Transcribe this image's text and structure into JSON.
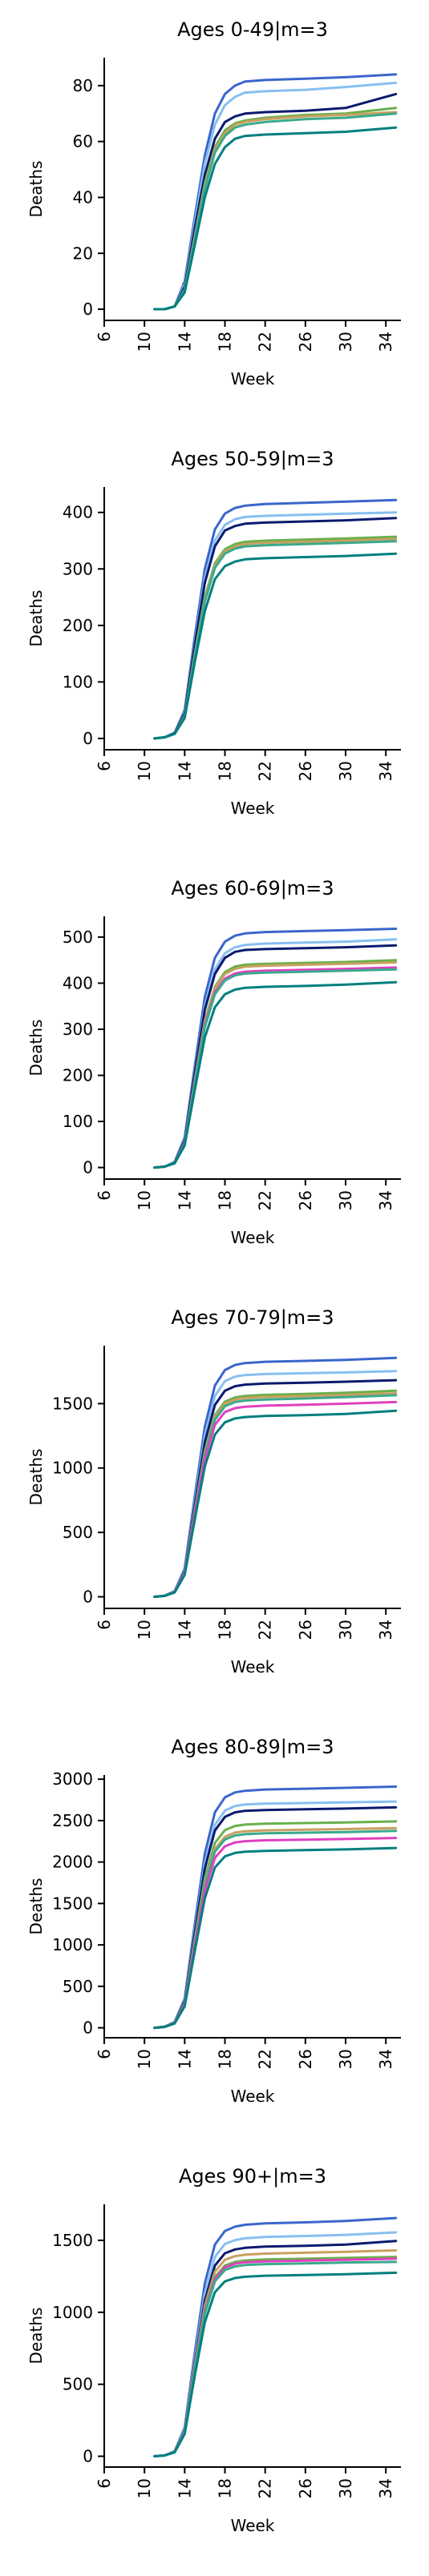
{
  "chart_data": [
    {
      "type": "line",
      "title": "Ages 0-49|m=3",
      "xlabel": "Week",
      "ylabel": "Deaths",
      "xlim": [
        6,
        35.5
      ],
      "ylim": [
        -4,
        90
      ],
      "xticks": [
        6,
        10,
        14,
        18,
        22,
        26,
        30,
        34
      ],
      "yticks": [
        0,
        20,
        40,
        60,
        80
      ],
      "x": [
        11,
        12,
        13,
        14,
        15,
        16,
        17,
        18,
        19,
        20,
        22,
        26,
        30,
        35
      ],
      "series": [
        {
          "color": "#3a66cc",
          "values": [
            0,
            0,
            1,
            10,
            33,
            55,
            70,
            77,
            80,
            81.5,
            82,
            82.5,
            83,
            84
          ]
        },
        {
          "color": "#88bff0",
          "values": [
            0,
            0,
            1,
            9,
            31,
            52,
            66,
            73,
            76,
            77.5,
            78,
            78.5,
            79.5,
            81
          ]
        },
        {
          "color": "#0a1a6e",
          "values": [
            0,
            0,
            1,
            8,
            29,
            48,
            61,
            67,
            69,
            70,
            70.5,
            71,
            72,
            77
          ]
        },
        {
          "color": "#6ab04c",
          "values": [
            0,
            0,
            1,
            7,
            26,
            45,
            58,
            64,
            66.5,
            67.5,
            68.5,
            69.5,
            70,
            72
          ]
        },
        {
          "color": "#c8a060",
          "values": [
            0,
            0,
            1,
            7,
            26,
            44,
            57,
            63,
            66,
            67,
            68,
            69,
            69.5,
            70.5
          ]
        },
        {
          "color": "#3aaa8c",
          "values": [
            0,
            0,
            1,
            7,
            25,
            43,
            56,
            62,
            65,
            66,
            67,
            68,
            68.5,
            70
          ]
        },
        {
          "color": "#007f7f",
          "values": [
            0,
            0,
            1,
            6,
            23,
            40,
            52,
            58,
            61,
            62,
            62.5,
            63,
            63.5,
            65
          ]
        }
      ]
    },
    {
      "type": "line",
      "title": "Ages 50-59|m=3",
      "xlabel": "Week",
      "ylabel": "Deaths",
      "xlim": [
        6,
        35.5
      ],
      "ylim": [
        -20,
        445
      ],
      "xticks": [
        6,
        10,
        14,
        18,
        22,
        26,
        30,
        34
      ],
      "yticks": [
        0,
        100,
        200,
        300,
        400
      ],
      "x": [
        11,
        12,
        13,
        14,
        15,
        16,
        17,
        18,
        19,
        20,
        22,
        26,
        30,
        35
      ],
      "series": [
        {
          "color": "#3a66cc",
          "values": [
            0,
            2,
            10,
            50,
            180,
            300,
            370,
            398,
            408,
            412,
            415,
            417,
            419,
            422
          ]
        },
        {
          "color": "#88bff0",
          "values": [
            0,
            2,
            9,
            46,
            170,
            285,
            350,
            378,
            388,
            392,
            394,
            396,
            398,
            400
          ]
        },
        {
          "color": "#0a1a6e",
          "values": [
            0,
            2,
            9,
            44,
            165,
            275,
            340,
            368,
            376,
            380,
            382,
            384,
            386,
            390
          ]
        },
        {
          "color": "#6ab04c",
          "values": [
            0,
            2,
            8,
            40,
            150,
            250,
            310,
            335,
            344,
            348,
            350,
            352,
            354,
            357
          ]
        },
        {
          "color": "#c8a060",
          "values": [
            0,
            2,
            8,
            39,
            148,
            246,
            306,
            331,
            340,
            344,
            346,
            348,
            350,
            353
          ]
        },
        {
          "color": "#3aaa8c",
          "values": [
            0,
            2,
            8,
            38,
            145,
            242,
            302,
            327,
            336,
            340,
            342,
            344,
            346,
            349
          ]
        },
        {
          "color": "#007f7f",
          "values": [
            0,
            2,
            8,
            36,
            135,
            225,
            282,
            305,
            313,
            317,
            319,
            321,
            323,
            327
          ]
        }
      ]
    },
    {
      "type": "line",
      "title": "Ages 60-69|m=3",
      "xlabel": "Week",
      "ylabel": "Deaths",
      "xlim": [
        6,
        35.5
      ],
      "ylim": [
        -25,
        545
      ],
      "xticks": [
        6,
        10,
        14,
        18,
        22,
        26,
        30,
        34
      ],
      "yticks": [
        0,
        100,
        200,
        300,
        400,
        500
      ],
      "x": [
        11,
        12,
        13,
        14,
        15,
        16,
        17,
        18,
        19,
        20,
        22,
        26,
        30,
        35
      ],
      "series": [
        {
          "color": "#3a66cc",
          "values": [
            0,
            2,
            12,
            65,
            220,
            370,
            455,
            490,
            503,
            508,
            511,
            513,
            515,
            518
          ]
        },
        {
          "color": "#88bff0",
          "values": [
            0,
            2,
            11,
            60,
            210,
            350,
            430,
            465,
            478,
            483,
            486,
            488,
            490,
            495
          ]
        },
        {
          "color": "#0a1a6e",
          "values": [
            0,
            2,
            11,
            58,
            205,
            342,
            420,
            455,
            468,
            472,
            474,
            476,
            478,
            482
          ]
        },
        {
          "color": "#6ab04c",
          "values": [
            0,
            2,
            10,
            54,
            190,
            318,
            392,
            424,
            436,
            440,
            442,
            444,
            446,
            450
          ]
        },
        {
          "color": "#c8a060",
          "values": [
            0,
            2,
            10,
            53,
            188,
            314,
            388,
            420,
            431,
            436,
            438,
            440,
            442,
            445
          ]
        },
        {
          "color": "#e040c0",
          "values": [
            0,
            2,
            10,
            52,
            184,
            308,
            380,
            410,
            421,
            425,
            427,
            429,
            431,
            434
          ]
        },
        {
          "color": "#3aaa8c",
          "values": [
            0,
            2,
            10,
            51,
            182,
            304,
            376,
            406,
            417,
            421,
            423,
            425,
            427,
            430
          ]
        },
        {
          "color": "#007f7f",
          "values": [
            0,
            2,
            9,
            48,
            168,
            282,
            348,
            376,
            386,
            390,
            392,
            394,
            397,
            402
          ]
        }
      ]
    },
    {
      "type": "line",
      "title": "Ages 70-79|m=3",
      "xlabel": "Week",
      "ylabel": "Deaths",
      "xlim": [
        6,
        35.5
      ],
      "ylim": [
        -90,
        1950
      ],
      "xticks": [
        6,
        10,
        14,
        18,
        22,
        26,
        30,
        34
      ],
      "yticks": [
        0,
        500,
        1000,
        1500
      ],
      "x": [
        11,
        12,
        13,
        14,
        15,
        16,
        17,
        18,
        19,
        20,
        22,
        26,
        30,
        35
      ],
      "series": [
        {
          "color": "#3a66cc",
          "values": [
            0,
            8,
            45,
            220,
            780,
            1320,
            1640,
            1760,
            1800,
            1815,
            1825,
            1832,
            1840,
            1855
          ]
        },
        {
          "color": "#88bff0",
          "values": [
            0,
            8,
            42,
            210,
            740,
            1250,
            1560,
            1675,
            1710,
            1722,
            1730,
            1736,
            1742,
            1752
          ]
        },
        {
          "color": "#0a1a6e",
          "values": [
            0,
            8,
            40,
            200,
            710,
            1200,
            1490,
            1600,
            1635,
            1648,
            1656,
            1662,
            1670,
            1682
          ]
        },
        {
          "color": "#6ab04c",
          "values": [
            0,
            7,
            38,
            190,
            670,
            1130,
            1410,
            1515,
            1548,
            1560,
            1568,
            1575,
            1585,
            1600
          ]
        },
        {
          "color": "#c8a060",
          "values": [
            0,
            7,
            38,
            188,
            660,
            1115,
            1395,
            1500,
            1532,
            1544,
            1552,
            1559,
            1568,
            1580
          ]
        },
        {
          "color": "#3aaa8c",
          "values": [
            0,
            7,
            37,
            185,
            650,
            1100,
            1375,
            1480,
            1512,
            1524,
            1532,
            1540,
            1550,
            1565
          ]
        },
        {
          "color": "#e040c0",
          "values": [
            0,
            7,
            36,
            180,
            635,
            1070,
            1335,
            1435,
            1465,
            1476,
            1484,
            1491,
            1500,
            1512
          ]
        },
        {
          "color": "#007f7f",
          "values": [
            0,
            7,
            34,
            170,
            600,
            1010,
            1260,
            1355,
            1385,
            1396,
            1404,
            1411,
            1420,
            1445
          ]
        }
      ]
    },
    {
      "type": "line",
      "title": "Ages 80-89|m=3",
      "xlabel": "Week",
      "ylabel": "Deaths",
      "xlim": [
        6,
        35.5
      ],
      "ylim": [
        -120,
        3050
      ],
      "xticks": [
        6,
        10,
        14,
        18,
        22,
        26,
        30,
        34
      ],
      "yticks": [
        0,
        500,
        1000,
        1500,
        2000,
        2500,
        3000
      ],
      "x": [
        11,
        12,
        13,
        14,
        15,
        16,
        17,
        18,
        19,
        20,
        22,
        26,
        30,
        35
      ],
      "series": [
        {
          "color": "#3a66cc",
          "values": [
            0,
            12,
            70,
            350,
            1250,
            2100,
            2600,
            2780,
            2840,
            2860,
            2875,
            2885,
            2895,
            2910
          ]
        },
        {
          "color": "#88bff0",
          "values": [
            0,
            12,
            66,
            330,
            1180,
            1980,
            2450,
            2620,
            2675,
            2695,
            2705,
            2712,
            2720,
            2730
          ]
        },
        {
          "color": "#0a1a6e",
          "values": [
            0,
            12,
            64,
            320,
            1140,
            1920,
            2380,
            2545,
            2600,
            2618,
            2628,
            2636,
            2645,
            2660
          ]
        },
        {
          "color": "#6ab04c",
          "values": [
            0,
            11,
            60,
            300,
            1070,
            1800,
            2230,
            2385,
            2435,
            2452,
            2462,
            2470,
            2478,
            2490
          ]
        },
        {
          "color": "#c8a060",
          "values": [
            0,
            11,
            58,
            290,
            1030,
            1740,
            2155,
            2305,
            2355,
            2372,
            2382,
            2390,
            2398,
            2410
          ]
        },
        {
          "color": "#3aaa8c",
          "values": [
            0,
            11,
            57,
            285,
            1015,
            1715,
            2125,
            2272,
            2320,
            2336,
            2346,
            2354,
            2362,
            2375
          ]
        },
        {
          "color": "#e040c0",
          "values": [
            0,
            11,
            55,
            275,
            980,
            1655,
            2050,
            2190,
            2236,
            2252,
            2262,
            2270,
            2278,
            2290
          ]
        },
        {
          "color": "#007f7f",
          "values": [
            0,
            10,
            52,
            260,
            925,
            1560,
            1935,
            2068,
            2110,
            2125,
            2135,
            2143,
            2152,
            2170
          ]
        }
      ]
    },
    {
      "type": "line",
      "title": "Ages 90+|m=3",
      "xlabel": "Week",
      "ylabel": "Deaths",
      "xlim": [
        6,
        35.5
      ],
      "ylim": [
        -75,
        1750
      ],
      "xticks": [
        6,
        10,
        14,
        18,
        22,
        26,
        30,
        34
      ],
      "yticks": [
        0,
        500,
        1000,
        1500
      ],
      "x": [
        11,
        12,
        13,
        14,
        15,
        16,
        17,
        18,
        19,
        20,
        22,
        26,
        30,
        35
      ],
      "series": [
        {
          "color": "#3a66cc",
          "values": [
            0,
            6,
            35,
            200,
            720,
            1200,
            1470,
            1565,
            1595,
            1608,
            1618,
            1625,
            1635,
            1655
          ]
        },
        {
          "color": "#88bff0",
          "values": [
            0,
            6,
            33,
            190,
            680,
            1130,
            1385,
            1475,
            1502,
            1514,
            1523,
            1530,
            1538,
            1555
          ]
        },
        {
          "color": "#0a1a6e",
          "values": [
            0,
            6,
            32,
            180,
            650,
            1080,
            1325,
            1410,
            1437,
            1448,
            1456,
            1462,
            1470,
            1495
          ]
        },
        {
          "color": "#c8a060",
          "values": [
            0,
            6,
            31,
            175,
            630,
            1045,
            1282,
            1365,
            1390,
            1400,
            1408,
            1414,
            1420,
            1430
          ]
        },
        {
          "color": "#6ab04c",
          "values": [
            0,
            6,
            30,
            170,
            612,
            1015,
            1245,
            1325,
            1350,
            1360,
            1367,
            1372,
            1378,
            1385
          ]
        },
        {
          "color": "#e040c0",
          "values": [
            0,
            6,
            30,
            168,
            605,
            1005,
            1232,
            1312,
            1337,
            1347,
            1354,
            1359,
            1365,
            1372
          ]
        },
        {
          "color": "#3aaa8c",
          "values": [
            0,
            6,
            29,
            165,
            595,
            990,
            1215,
            1294,
            1318,
            1328,
            1335,
            1340,
            1346,
            1350
          ]
        },
        {
          "color": "#007f7f",
          "values": [
            0,
            5,
            27,
            155,
            560,
            930,
            1140,
            1215,
            1238,
            1247,
            1254,
            1259,
            1264,
            1275
          ]
        }
      ]
    }
  ]
}
